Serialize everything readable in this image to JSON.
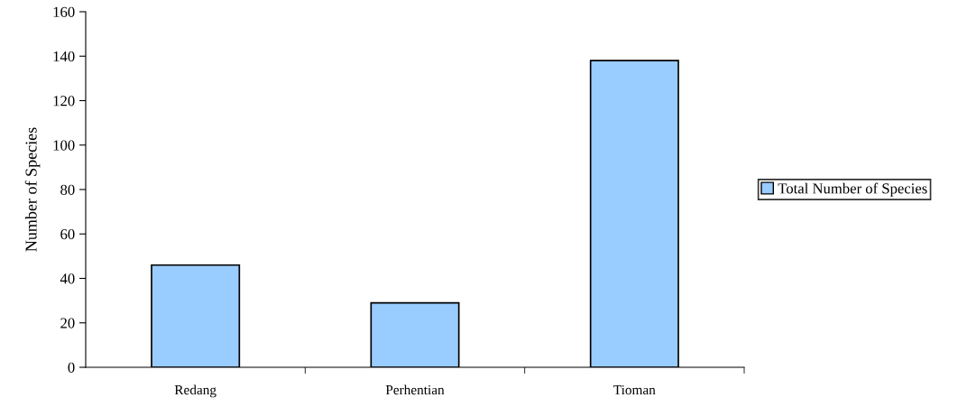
{
  "chart_data": {
    "type": "bar",
    "ylabel": "Number of Species",
    "categories": [
      "Redang",
      "Perhentian",
      "Tioman"
    ],
    "series": [
      {
        "name": "Total Number of Species",
        "color": "#99ccff",
        "values": [
          46,
          29,
          138
        ]
      }
    ],
    "ylim": [
      0,
      160
    ],
    "yticks": [
      0,
      20,
      40,
      60,
      80,
      100,
      120,
      140,
      160
    ],
    "grid": false,
    "legend": "right"
  }
}
